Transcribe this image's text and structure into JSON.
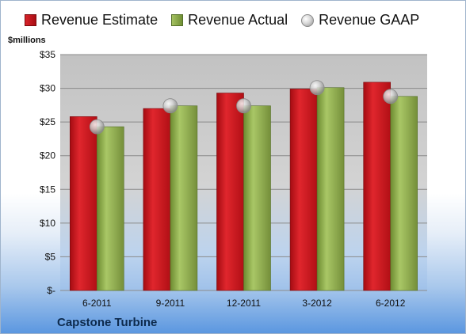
{
  "legend": {
    "estimate_label": "Revenue Estimate",
    "actual_label": "Revenue Actual",
    "gaap_label": "Revenue GAAP"
  },
  "unit_label": "$millions",
  "company": "Capstone Turbine",
  "colors": {
    "estimate": "#c8161d",
    "actual": "#8fae4c",
    "gaap": "#c8c8c8",
    "plot_bg": "#c9c9c9"
  },
  "chart_data": {
    "type": "bar",
    "categories": [
      "6-2011",
      "9-2011",
      "12-2011",
      "3-2012",
      "6-2012"
    ],
    "series": [
      {
        "name": "Revenue Estimate",
        "values": [
          25.8,
          27.0,
          29.3,
          29.9,
          30.9
        ]
      },
      {
        "name": "Revenue Actual",
        "values": [
          24.3,
          27.4,
          27.4,
          30.1,
          28.8
        ]
      },
      {
        "name": "Revenue GAAP",
        "values": [
          24.3,
          27.4,
          27.4,
          30.1,
          28.8
        ]
      }
    ],
    "ylabel": "$millions",
    "ylim": [
      0,
      35
    ],
    "yticks": [
      0,
      5,
      10,
      15,
      20,
      25,
      30,
      35
    ],
    "ytick_labels": [
      "$-",
      "$5",
      "$10",
      "$15",
      "$20",
      "$25",
      "$30",
      "$35"
    ],
    "grid": true,
    "legend_position": "top"
  }
}
